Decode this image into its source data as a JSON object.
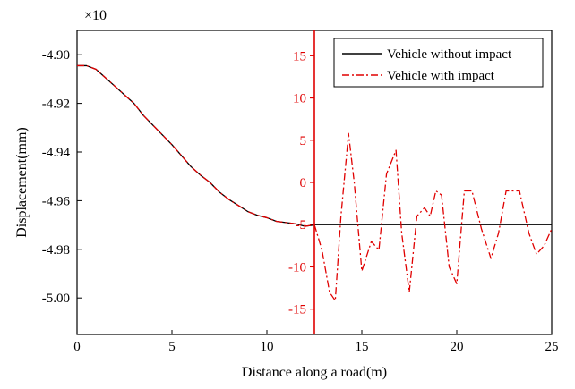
{
  "chart_data": {
    "type": "line",
    "xlabel": "Distance along a road(m)",
    "ylabel": "Displacement(mm)",
    "multiplier": "×10",
    "xlim": [
      0,
      25
    ],
    "ylim": [
      -5.015,
      -4.89
    ],
    "xticks": [
      0,
      5,
      10,
      15,
      20,
      25
    ],
    "xtick_labels": [
      "0",
      "5",
      "10",
      "15",
      "20",
      "25"
    ],
    "yticks": [
      -4.9,
      -4.92,
      -4.94,
      -4.96,
      -4.98,
      -5.0
    ],
    "ytick_labels": [
      "-4.90",
      "-4.92",
      "-4.94",
      "-4.96",
      "-4.98",
      "-5.00"
    ],
    "secondary_axis": {
      "position_x": 12.5,
      "ylim": [
        -18,
        18
      ],
      "yticks": [
        15,
        10,
        5,
        0,
        -5,
        -10,
        -15
      ],
      "ytick_labels": [
        "15",
        "10",
        "5",
        "0",
        "-5",
        "-10",
        "-15"
      ],
      "color": "#e00000"
    },
    "legend_position": "top-right",
    "series": [
      {
        "name": "Vehicle without impact",
        "color": "#000000",
        "style": "solid",
        "axis": "primary",
        "x": [
          0,
          0.5,
          1,
          1.5,
          2,
          2.5,
          3,
          3.5,
          4,
          4.5,
          5,
          5.5,
          6,
          6.5,
          7,
          7.5,
          8,
          8.5,
          9,
          9.5,
          10,
          10.5,
          11,
          11.5,
          12,
          12.5
        ],
        "y": [
          -4.9045,
          -4.9045,
          -4.906,
          -4.9095,
          -4.913,
          -4.9165,
          -4.92,
          -4.925,
          -4.929,
          -4.933,
          -4.937,
          -4.9415,
          -4.946,
          -4.9495,
          -4.9525,
          -4.9565,
          -4.9595,
          -4.962,
          -4.9645,
          -4.966,
          -4.967,
          -4.9685,
          -4.969,
          -4.9695,
          -4.9705,
          -4.97
        ]
      },
      {
        "name": "Vehicle without impact",
        "color": "#000000",
        "style": "solid",
        "axis": "secondary",
        "x": [
          12.5,
          15,
          20,
          25
        ],
        "y": [
          -5,
          -5,
          -5,
          -5
        ]
      },
      {
        "name": "Vehicle with impact",
        "color": "#e00000",
        "style": "dashdot",
        "axis": "primary",
        "x": [
          0,
          0.5,
          1,
          1.5,
          2,
          2.5,
          3,
          3.5,
          4,
          4.5,
          5,
          5.5,
          6,
          6.5,
          7,
          7.5,
          8,
          8.5,
          9,
          9.5,
          10,
          10.5,
          11,
          11.5,
          12,
          12.5
        ],
        "y": [
          -4.9045,
          -4.9045,
          -4.906,
          -4.9095,
          -4.913,
          -4.9165,
          -4.92,
          -4.925,
          -4.929,
          -4.933,
          -4.937,
          -4.9415,
          -4.946,
          -4.9495,
          -4.9525,
          -4.9565,
          -4.9595,
          -4.962,
          -4.9645,
          -4.966,
          -4.967,
          -4.9685,
          -4.969,
          -4.9695,
          -4.9705,
          -4.97
        ]
      },
      {
        "name": "Vehicle with impact",
        "color": "#e00000",
        "style": "dashdot",
        "axis": "secondary",
        "x": [
          12.5,
          12.9,
          13.3,
          13.6,
          13.9,
          14.3,
          14.6,
          15.0,
          15.5,
          15.9,
          16.3,
          16.8,
          17.1,
          17.5,
          17.9,
          18.3,
          18.6,
          18.9,
          19.2,
          19.6,
          20.0,
          20.4,
          20.8,
          21.3,
          21.8,
          22.2,
          22.6,
          23.3,
          23.8,
          24.2,
          24.6,
          25.0
        ],
        "y": [
          -5,
          -8,
          -13,
          -14,
          -4,
          5.8,
          0,
          -10.5,
          -7,
          -8,
          1,
          3.8,
          -6,
          -13,
          -4,
          -3,
          -4,
          -1,
          -1.5,
          -10,
          -12,
          -1,
          -1,
          -5.5,
          -9,
          -6,
          -1,
          -1,
          -6,
          -8.5,
          -7.5,
          -5.5
        ]
      }
    ]
  }
}
